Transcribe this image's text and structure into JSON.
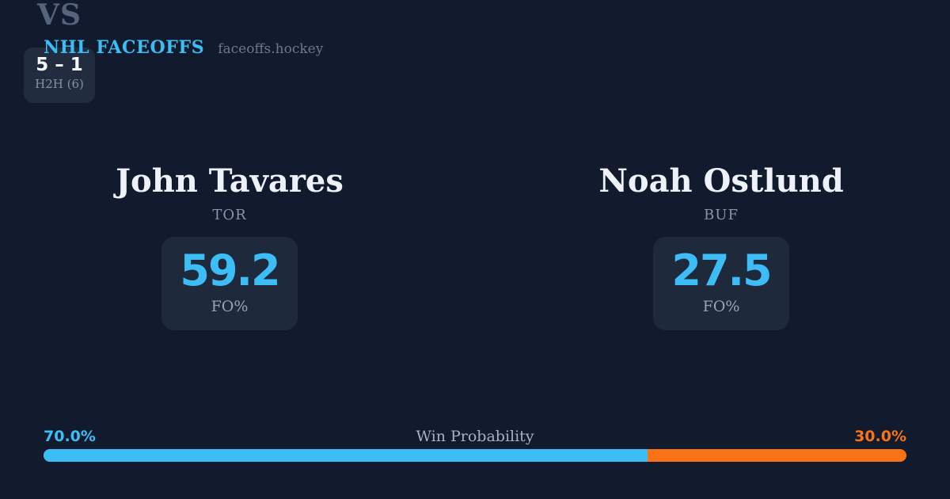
{
  "header": {
    "brand": "NHL FACEOFFS",
    "site": "faceoffs.hockey"
  },
  "players": {
    "left": {
      "name": "John Tavares",
      "team": "TOR",
      "stat_value": "59.2",
      "stat_label": "FO%"
    },
    "right": {
      "name": "Noah Ostlund",
      "team": "BUF",
      "stat_value": "27.5",
      "stat_label": "FO%"
    }
  },
  "center": {
    "vs_label": "VS",
    "h2h_record": "5 – 1",
    "h2h_label": "H2H (6)"
  },
  "win_probability": {
    "title": "Win Probability",
    "left_label": "70.0%",
    "right_label": "30.0%",
    "left_value": 70.0,
    "right_value": 30.0
  },
  "colors": {
    "background": "#121b2d",
    "card": "#1e2a3b",
    "accent_blue": "#3cbdf6",
    "accent_orange": "#f97316"
  }
}
